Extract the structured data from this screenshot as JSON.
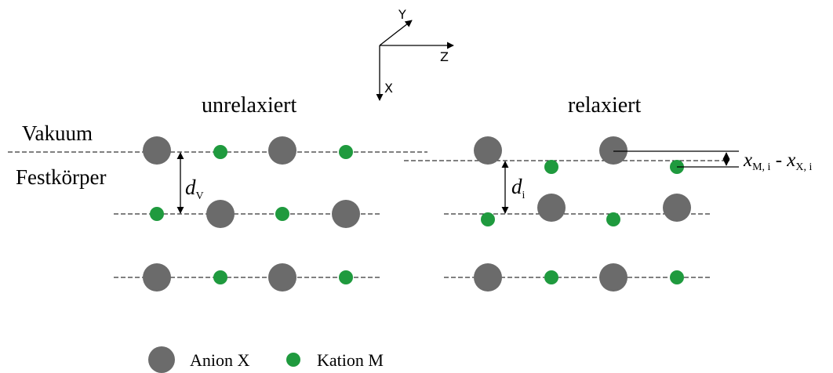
{
  "axes": {
    "x": "X",
    "y": "Y",
    "z": "Z"
  },
  "panels": {
    "left_title": "unrelaxiert",
    "right_title": "relaxiert"
  },
  "regions": {
    "top": "Vakuum",
    "bottom": "Festkörper"
  },
  "labels": {
    "dv_main": "d",
    "dv_sub": "V",
    "di_main": "d",
    "di_sub": "i",
    "disp_xm": "x",
    "disp_xm_sub": "M, i",
    "disp_minus": " - ",
    "disp_xx": "x",
    "disp_xx_sub": "X, i"
  },
  "legend": {
    "anion": "Anion X",
    "cation": "Kation M"
  },
  "colors": {
    "anion": "#6b6b6b",
    "cation": "#1f9a3e"
  }
}
